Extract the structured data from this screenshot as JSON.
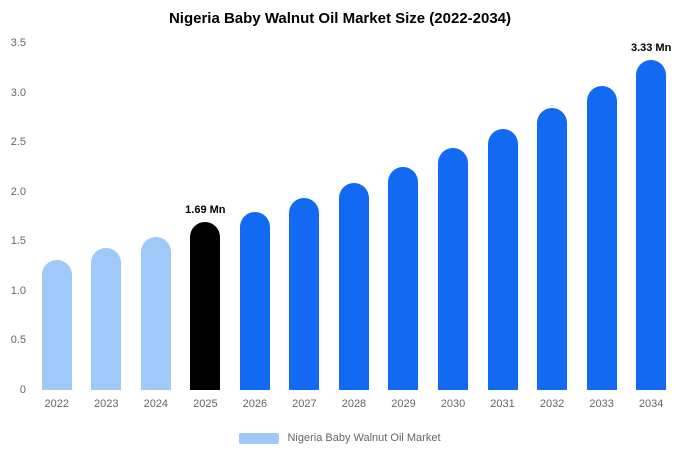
{
  "title": "Nigeria Baby Walnut Oil Market Size (2022-2034)",
  "legend": {
    "label": "Nigeria Baby Walnut Oil Market",
    "swatch_color": "#9ec9f9"
  },
  "colors": {
    "historical_bar": "#9ec9f9",
    "base_year_bar": "#000000",
    "forecast_bar": "#1269f2",
    "axis_text": "#666666",
    "title_text": "#000000"
  },
  "y_axis": {
    "max": 3.5,
    "ticks": [
      {
        "label": "3.5",
        "value": 3.5
      },
      {
        "label": "3.0",
        "value": 3.0
      },
      {
        "label": "2.5",
        "value": 2.5
      },
      {
        "label": "2.0",
        "value": 2.0
      },
      {
        "label": "1.5",
        "value": 1.5
      },
      {
        "label": "1.0",
        "value": 1.0
      },
      {
        "label": "0.5",
        "value": 0.5
      },
      {
        "label": "0",
        "value": 0
      }
    ]
  },
  "chart_data": {
    "type": "bar",
    "title": "Nigeria Baby Walnut Oil Market Size (2022-2034)",
    "xlabel": "",
    "ylabel": "",
    "ylim": [
      0,
      3.5
    ],
    "grid": false,
    "legend_position": "bottom",
    "categories": [
      "2022",
      "2023",
      "2024",
      "2025",
      "2026",
      "2027",
      "2028",
      "2029",
      "2030",
      "2031",
      "2032",
      "2033",
      "2034"
    ],
    "values": [
      1.31,
      1.43,
      1.54,
      1.69,
      1.8,
      1.94,
      2.09,
      2.25,
      2.44,
      2.63,
      2.84,
      3.07,
      3.33
    ],
    "bar_colors": [
      "#9ec9f9",
      "#9ec9f9",
      "#9ec9f9",
      "#000000",
      "#1269f2",
      "#1269f2",
      "#1269f2",
      "#1269f2",
      "#1269f2",
      "#1269f2",
      "#1269f2",
      "#1269f2",
      "#1269f2"
    ],
    "annotations": [
      {
        "index": 3,
        "text": "1.69 Mn"
      },
      {
        "index": 12,
        "text": "3.33 Mn"
      }
    ]
  }
}
